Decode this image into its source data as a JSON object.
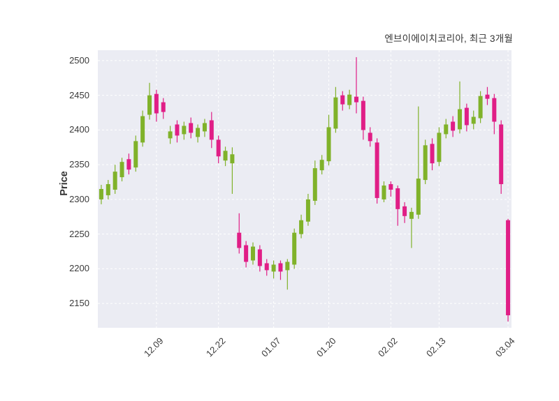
{
  "chart_data": {
    "type": "candlestick",
    "title": "엔브이에이치코리아, 최근 3개월",
    "ylabel": "Price",
    "ylim": [
      2115,
      2515
    ],
    "y_ticks": [
      2150,
      2200,
      2250,
      2300,
      2350,
      2400,
      2450,
      2500
    ],
    "x_tick_labels": [
      "12.09",
      "12.22",
      "01.07",
      "01.20",
      "02.02",
      "02.13",
      "03.04"
    ],
    "x_tick_indices": [
      8,
      17,
      25,
      33,
      42,
      49,
      59
    ],
    "grid": {
      "visible": true,
      "style": "dashed",
      "legend": "none"
    },
    "colors": {
      "up": "#80b22a",
      "down": "#e01e86",
      "plot_bg": "#ebecf3",
      "grid": "#ffffff",
      "text": "#3a3a3a"
    },
    "candles_format": [
      "open",
      "high",
      "low",
      "close"
    ],
    "candles": [
      [
        2300,
        2321,
        2293,
        2315
      ],
      [
        2306,
        2328,
        2300,
        2322
      ],
      [
        2314,
        2350,
        2308,
        2340
      ],
      [
        2332,
        2360,
        2326,
        2354
      ],
      [
        2358,
        2366,
        2336,
        2343
      ],
      [
        2346,
        2392,
        2340,
        2384
      ],
      [
        2382,
        2428,
        2376,
        2420
      ],
      [
        2422,
        2468,
        2415,
        2450
      ],
      [
        2452,
        2458,
        2412,
        2424
      ],
      [
        2440,
        2446,
        2416,
        2426
      ],
      [
        2388,
        2406,
        2380,
        2398
      ],
      [
        2408,
        2414,
        2382,
        2392
      ],
      [
        2394,
        2412,
        2386,
        2406
      ],
      [
        2410,
        2418,
        2388,
        2396
      ],
      [
        2390,
        2408,
        2382,
        2403
      ],
      [
        2398,
        2416,
        2390,
        2410
      ],
      [
        2414,
        2426,
        2374,
        2386
      ],
      [
        2386,
        2392,
        2352,
        2362
      ],
      [
        2356,
        2376,
        2348,
        2370
      ],
      [
        2352,
        2375,
        2308,
        2365
      ],
      [
        2252,
        2280,
        2222,
        2230
      ],
      [
        2234,
        2240,
        2202,
        2210
      ],
      [
        2212,
        2238,
        2206,
        2232
      ],
      [
        2228,
        2234,
        2196,
        2204
      ],
      [
        2208,
        2214,
        2190,
        2198
      ],
      [
        2196,
        2212,
        2186,
        2206
      ],
      [
        2208,
        2212,
        2184,
        2196
      ],
      [
        2198,
        2214,
        2170,
        2210
      ],
      [
        2206,
        2258,
        2200,
        2252
      ],
      [
        2250,
        2278,
        2244,
        2270
      ],
      [
        2268,
        2308,
        2262,
        2300
      ],
      [
        2298,
        2356,
        2292,
        2345
      ],
      [
        2342,
        2364,
        2336,
        2357
      ],
      [
        2355,
        2422,
        2349,
        2404
      ],
      [
        2402,
        2462,
        2396,
        2447
      ],
      [
        2450,
        2456,
        2428,
        2437
      ],
      [
        2436,
        2458,
        2430,
        2451
      ],
      [
        2448,
        2505,
        2424,
        2440
      ],
      [
        2442,
        2448,
        2386,
        2400
      ],
      [
        2396,
        2404,
        2376,
        2384
      ],
      [
        2382,
        2388,
        2294,
        2302
      ],
      [
        2300,
        2326,
        2296,
        2320
      ],
      [
        2322,
        2326,
        2304,
        2314
      ],
      [
        2316,
        2320,
        2262,
        2286
      ],
      [
        2290,
        2296,
        2266,
        2276
      ],
      [
        2272,
        2288,
        2230,
        2282
      ],
      [
        2278,
        2434,
        2272,
        2330
      ],
      [
        2328,
        2386,
        2322,
        2378
      ],
      [
        2380,
        2388,
        2342,
        2352
      ],
      [
        2354,
        2404,
        2348,
        2396
      ],
      [
        2394,
        2416,
        2388,
        2408
      ],
      [
        2412,
        2420,
        2390,
        2399
      ],
      [
        2401,
        2470,
        2395,
        2430
      ],
      [
        2432,
        2438,
        2398,
        2407
      ],
      [
        2409,
        2428,
        2401,
        2419
      ],
      [
        2417,
        2456,
        2410,
        2449
      ],
      [
        2451,
        2462,
        2436,
        2445
      ],
      [
        2446,
        2452,
        2394,
        2412
      ],
      [
        2408,
        2414,
        2308,
        2322
      ],
      [
        2270,
        2272,
        2124,
        2133
      ]
    ]
  }
}
